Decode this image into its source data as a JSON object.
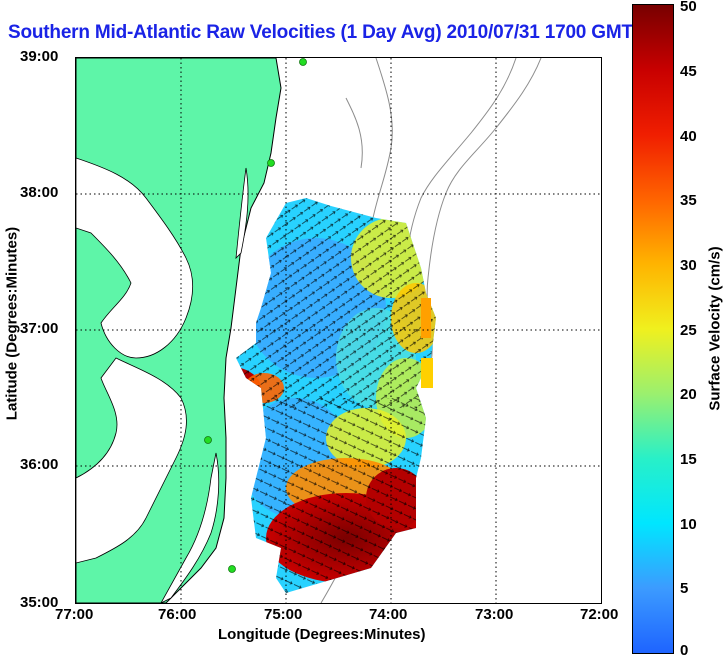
{
  "title": "Southern Mid-Atlantic Raw Velocities (1 Day Avg) 2010/07/31 1700 GMT",
  "x_axis": {
    "label": "Longitude (Degrees:Minutes)",
    "ticks": [
      "77:00",
      "76:00",
      "75:00",
      "74:00",
      "73:00",
      "72:00"
    ]
  },
  "y_axis": {
    "label": "Latitude (Degrees:Minutes)",
    "ticks": [
      "39:00",
      "38:00",
      "37:00",
      "36:00",
      "35:00"
    ]
  },
  "colorbar": {
    "label": "Surface Velocity (cm/s)",
    "ticks": [
      "50",
      "45",
      "40",
      "35",
      "30",
      "25",
      "20",
      "15",
      "10",
      "5",
      "0"
    ],
    "colors": [
      "#1e64ff",
      "#00e6ff",
      "#28f0c8",
      "#f0f01e",
      "#ff6400",
      "#c80000",
      "#780000"
    ]
  },
  "colors": {
    "land": "#5ef5a8",
    "coast": "#000000",
    "bathymetry": "#8c8c8c",
    "title": "#1a23e6"
  },
  "map": {
    "lon_range": [
      -77,
      -72
    ],
    "lat_range": [
      35,
      39
    ],
    "grid": "dotted",
    "stations": [
      [
        -74.6,
        39.0
      ],
      [
        -74.9,
        38.3
      ],
      [
        -75.5,
        36.2
      ],
      [
        -75.4,
        35.3
      ]
    ]
  }
}
